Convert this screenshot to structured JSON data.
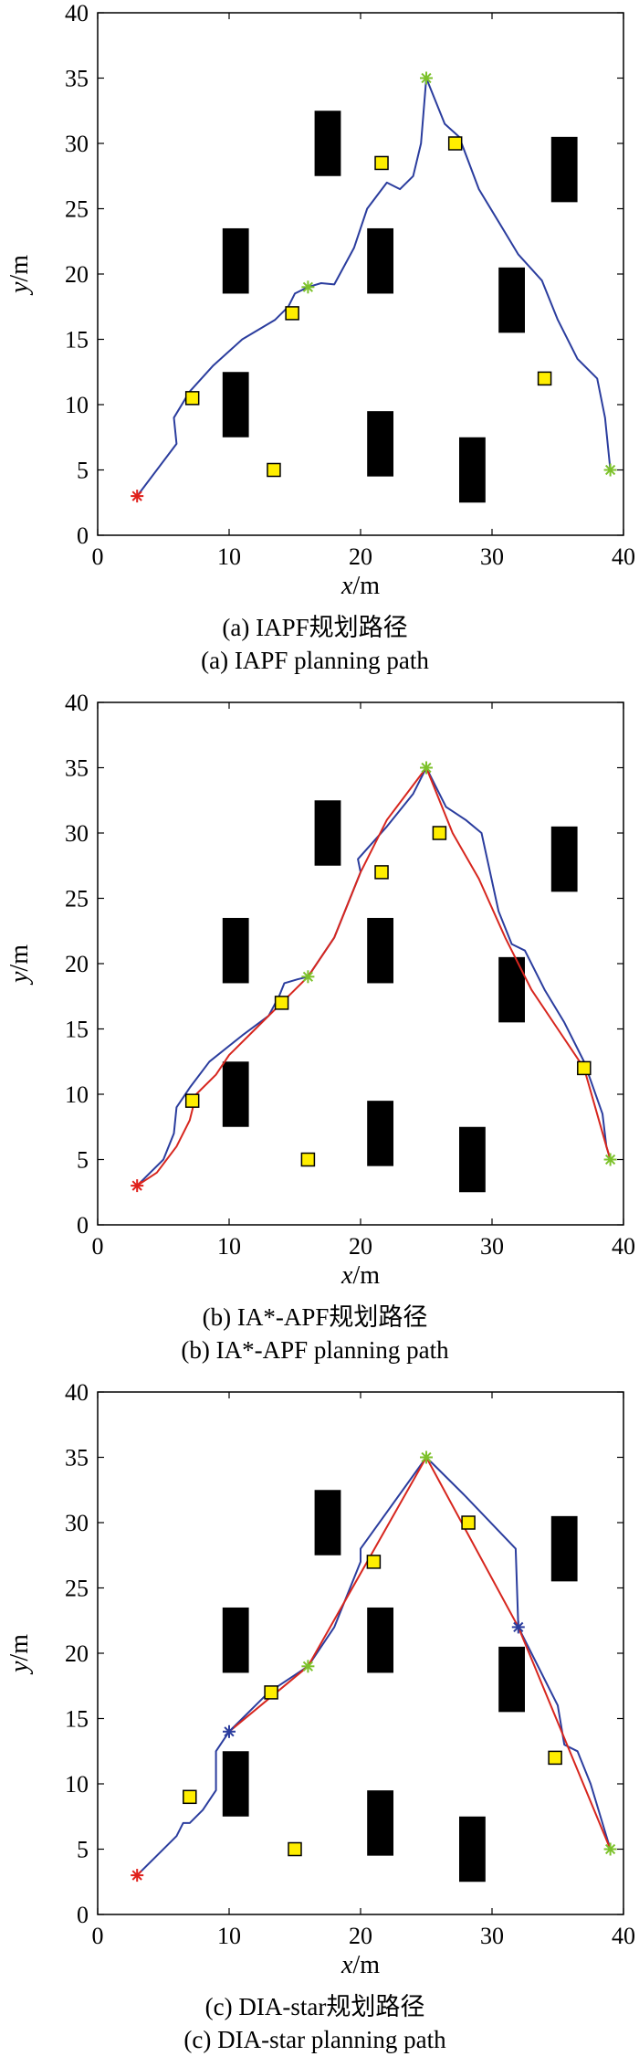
{
  "chart_data": [
    {
      "type": "line",
      "xlabel_var": "x",
      "xlabel_unit": "/m",
      "ylabel_var": "y",
      "ylabel_unit": "/m",
      "xlim": [
        0,
        40
      ],
      "ylim": [
        0,
        40
      ],
      "xticks": [
        "0",
        "10",
        "20",
        "30",
        "40"
      ],
      "yticks": [
        "0",
        "5",
        "10",
        "15",
        "20",
        "25",
        "30",
        "35",
        "40"
      ],
      "obstacles": [
        [
          9.5,
          18.5,
          11.5,
          23.5
        ],
        [
          9.5,
          7.5,
          11.5,
          12.5
        ],
        [
          16.5,
          27.5,
          18.5,
          32.5
        ],
        [
          20.5,
          18.5,
          22.5,
          23.5
        ],
        [
          20.5,
          4.5,
          22.5,
          9.5
        ],
        [
          27.5,
          2.5,
          29.5,
          7.5
        ],
        [
          30.5,
          15.5,
          32.5,
          20.5
        ],
        [
          34.5,
          25.5,
          36.5,
          30.5
        ]
      ],
      "yellow_squares": [
        [
          7.2,
          10.5
        ],
        [
          13.4,
          5
        ],
        [
          14.8,
          17
        ],
        [
          21.6,
          28.5
        ],
        [
          27.2,
          30
        ],
        [
          34,
          12
        ]
      ],
      "start": [
        3,
        3
      ],
      "green_points": [
        [
          16,
          19
        ],
        [
          25,
          35
        ],
        [
          39,
          5
        ]
      ],
      "blue_points": [],
      "series": [
        {
          "color": "#2b3d9e",
          "values": [
            [
              3,
              3
            ],
            [
              6,
              7
            ],
            [
              5.8,
              9
            ],
            [
              7,
              11
            ],
            [
              8.8,
              13
            ],
            [
              11,
              15
            ],
            [
              13.5,
              16.5
            ],
            [
              14.5,
              17.5
            ],
            [
              15,
              18.5
            ],
            [
              16,
              19
            ],
            [
              17,
              19.3
            ],
            [
              18,
              19.2
            ],
            [
              19.5,
              22
            ],
            [
              20.5,
              25
            ],
            [
              22,
              27
            ],
            [
              23,
              26.5
            ],
            [
              24,
              27.5
            ],
            [
              24.6,
              30
            ],
            [
              25,
              35
            ],
            [
              25.6,
              33.5
            ],
            [
              26.4,
              31.5
            ],
            [
              27.5,
              30.5
            ],
            [
              29,
              26.5
            ],
            [
              30.5,
              24
            ],
            [
              32,
              21.5
            ],
            [
              33.8,
              19.5
            ],
            [
              35,
              16.5
            ],
            [
              36.5,
              13.5
            ],
            [
              38,
              12
            ],
            [
              38.6,
              9
            ],
            [
              39,
              5
            ]
          ]
        }
      ],
      "caption_cn": "(a) IAPF规划路径",
      "caption_en": "(a) IAPF planning path"
    },
    {
      "type": "line",
      "xlabel_var": "x",
      "xlabel_unit": "/m",
      "ylabel_var": "y",
      "ylabel_unit": "/m",
      "xlim": [
        0,
        40
      ],
      "ylim": [
        0,
        40
      ],
      "xticks": [
        "0",
        "10",
        "20",
        "30",
        "40"
      ],
      "yticks": [
        "0",
        "5",
        "10",
        "15",
        "20",
        "25",
        "30",
        "35",
        "40"
      ],
      "obstacles": [
        [
          9.5,
          18.5,
          11.5,
          23.5
        ],
        [
          9.5,
          7.5,
          11.5,
          12.5
        ],
        [
          16.5,
          27.5,
          18.5,
          32.5
        ],
        [
          20.5,
          18.5,
          22.5,
          23.5
        ],
        [
          20.5,
          4.5,
          22.5,
          9.5
        ],
        [
          27.5,
          2.5,
          29.5,
          7.5
        ],
        [
          30.5,
          15.5,
          32.5,
          20.5
        ],
        [
          34.5,
          25.5,
          36.5,
          30.5
        ]
      ],
      "yellow_squares": [
        [
          7.2,
          9.5
        ],
        [
          16,
          5
        ],
        [
          14,
          17
        ],
        [
          21.6,
          27
        ],
        [
          26,
          30
        ],
        [
          37,
          12
        ]
      ],
      "start": [
        3,
        3
      ],
      "green_points": [
        [
          16,
          19
        ],
        [
          25,
          35
        ],
        [
          39,
          5
        ]
      ],
      "blue_points": [],
      "series": [
        {
          "color": "#2b3d9e",
          "values": [
            [
              3,
              3
            ],
            [
              5,
              5
            ],
            [
              5.8,
              7
            ],
            [
              6,
              9
            ],
            [
              7,
              10.5
            ],
            [
              8.5,
              12.5
            ],
            [
              11,
              14.5
            ],
            [
              13,
              16
            ],
            [
              13.8,
              17.5
            ],
            [
              14.2,
              18.5
            ],
            [
              15.2,
              18.8
            ],
            [
              16,
              19
            ],
            [
              18,
              22
            ],
            [
              20,
              27
            ],
            [
              19.8,
              28
            ],
            [
              22,
              30.5
            ],
            [
              24,
              33
            ],
            [
              25,
              35
            ],
            [
              26.5,
              32
            ],
            [
              28,
              31
            ],
            [
              29.2,
              30
            ],
            [
              30.5,
              24
            ],
            [
              31.5,
              21.5
            ],
            [
              32.5,
              21
            ],
            [
              34,
              18
            ],
            [
              35.5,
              15.5
            ],
            [
              37,
              12.5
            ],
            [
              38.4,
              8.5
            ],
            [
              38.7,
              6
            ],
            [
              39,
              5
            ]
          ]
        },
        {
          "color": "#d7261e",
          "values": [
            [
              3,
              3
            ],
            [
              4.5,
              4
            ],
            [
              6,
              6
            ],
            [
              7,
              8
            ],
            [
              7.5,
              10
            ],
            [
              9,
              11.5
            ],
            [
              10,
              13
            ],
            [
              12,
              15
            ],
            [
              14,
              17
            ],
            [
              16,
              19
            ],
            [
              18,
              22
            ],
            [
              20,
              27
            ],
            [
              22,
              31
            ],
            [
              25,
              35
            ],
            [
              27,
              30
            ],
            [
              29,
              26.5
            ],
            [
              31,
              22
            ],
            [
              33,
              18
            ],
            [
              35,
              15
            ],
            [
              37,
              12
            ],
            [
              38.7,
              6
            ],
            [
              39,
              5
            ]
          ]
        }
      ],
      "caption_cn": "(b) IA*-APF规划路径",
      "caption_en": "(b) IA*-APF planning path"
    },
    {
      "type": "line",
      "xlabel_var": "x",
      "xlabel_unit": "/m",
      "ylabel_var": "y",
      "ylabel_unit": "/m",
      "xlim": [
        0,
        40
      ],
      "ylim": [
        0,
        40
      ],
      "xticks": [
        "0",
        "10",
        "20",
        "30",
        "40"
      ],
      "yticks": [
        "0",
        "5",
        "10",
        "15",
        "20",
        "25",
        "30",
        "35",
        "40"
      ],
      "obstacles": [
        [
          9.5,
          18.5,
          11.5,
          23.5
        ],
        [
          9.5,
          7.5,
          11.5,
          12.5
        ],
        [
          16.5,
          27.5,
          18.5,
          32.5
        ],
        [
          20.5,
          18.5,
          22.5,
          23.5
        ],
        [
          20.5,
          4.5,
          22.5,
          9.5
        ],
        [
          27.5,
          2.5,
          29.5,
          7.5
        ],
        [
          30.5,
          15.5,
          32.5,
          20.5
        ],
        [
          34.5,
          25.5,
          36.5,
          30.5
        ]
      ],
      "yellow_squares": [
        [
          7,
          9
        ],
        [
          15,
          5
        ],
        [
          13.2,
          17
        ],
        [
          21,
          27
        ],
        [
          28.2,
          30
        ],
        [
          34.8,
          12
        ]
      ],
      "start": [
        3,
        3
      ],
      "green_points": [
        [
          16,
          19
        ],
        [
          25,
          35
        ],
        [
          39,
          5
        ]
      ],
      "blue_points": [
        [
          10,
          14
        ],
        [
          32,
          22
        ]
      ],
      "series": [
        {
          "color": "#2b3d9e",
          "values": [
            [
              3,
              3
            ],
            [
              6,
              6
            ],
            [
              6.5,
              7
            ],
            [
              7,
              7
            ],
            [
              8,
              8
            ],
            [
              9,
              9.5
            ],
            [
              9,
              12.5
            ],
            [
              10,
              14
            ],
            [
              13,
              17
            ],
            [
              16,
              19
            ],
            [
              18,
              22
            ],
            [
              20,
              27
            ],
            [
              20,
              28
            ],
            [
              25,
              35
            ],
            [
              28,
              32
            ],
            [
              31.8,
              28
            ],
            [
              32,
              22
            ],
            [
              33,
              20
            ],
            [
              35,
              16
            ],
            [
              35.5,
              13
            ],
            [
              36.5,
              12.5
            ],
            [
              37.5,
              10
            ],
            [
              39,
              5
            ]
          ]
        },
        {
          "color": "#d7261e",
          "values": [
            [
              10,
              14
            ],
            [
              16,
              19
            ],
            [
              25,
              35
            ],
            [
              32,
              22
            ],
            [
              39,
              5
            ]
          ]
        }
      ],
      "caption_cn": "(c) DIA-star规划路径",
      "caption_en": "(c) DIA-star planning path"
    }
  ]
}
